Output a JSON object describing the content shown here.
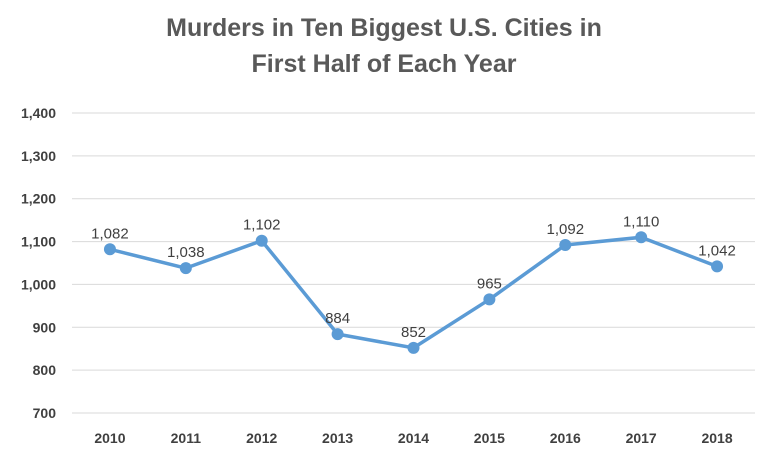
{
  "chart_data": {
    "type": "line",
    "title_lines": [
      "Murders in Ten Biggest U.S. Cities in",
      "First Half of Each Year"
    ],
    "xlabel": "",
    "ylabel": "",
    "categories": [
      "2010",
      "2011",
      "2012",
      "2013",
      "2014",
      "2015",
      "2016",
      "2017",
      "2018"
    ],
    "series": [
      {
        "values": [
          1082,
          1038,
          1102,
          884,
          852,
          965,
          1092,
          1110,
          1042
        ],
        "labels": [
          "1,082",
          "1,038",
          "1,102",
          "884",
          "852",
          "965",
          "1,092",
          "1,110",
          "1,042"
        ],
        "color": "#5B9BD5"
      }
    ],
    "ylim": [
      700,
      1400
    ],
    "yticks": [
      700,
      800,
      900,
      1000,
      1100,
      1200,
      1300,
      1400
    ],
    "ytick_labels": [
      "700",
      "800",
      "900",
      "1,000",
      "1,100",
      "1,200",
      "1,300",
      "1,400"
    ],
    "grid": true,
    "legend": "none",
    "colors": {
      "line": "#5B9BD5",
      "grid": "#D9D9D9",
      "title": "#595959",
      "text": "#404040"
    }
  }
}
